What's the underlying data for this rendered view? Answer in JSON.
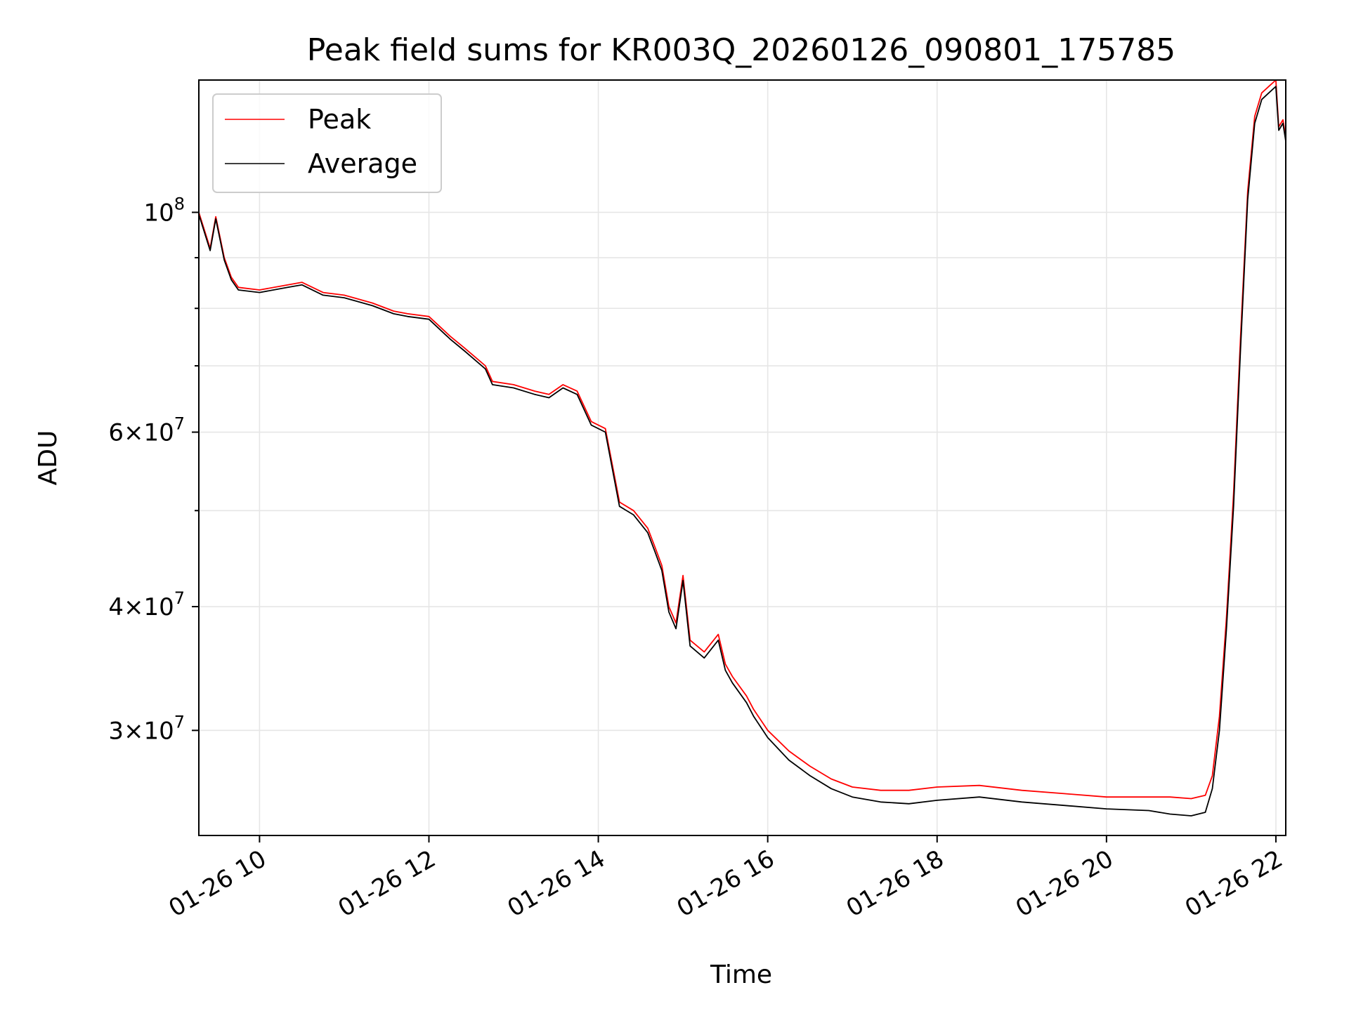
{
  "chart_data": {
    "type": "line",
    "title": "Peak field sums for KR003Q_20260126_090801_175785",
    "xlabel": "Time",
    "ylabel": "ADU",
    "y_scale": "log",
    "ylim": [
      23500000,
      136000000
    ],
    "xlim": [
      "01-26 09:17",
      "01-26 22:07"
    ],
    "x_ticks": [
      {
        "t": "01-26 10:00",
        "label": "01-26 10"
      },
      {
        "t": "01-26 12:00",
        "label": "01-26 12"
      },
      {
        "t": "01-26 14:00",
        "label": "01-26 14"
      },
      {
        "t": "01-26 16:00",
        "label": "01-26 16"
      },
      {
        "t": "01-26 18:00",
        "label": "01-26 18"
      },
      {
        "t": "01-26 20:00",
        "label": "01-26 20"
      },
      {
        "t": "01-26 22:00",
        "label": "01-26 22"
      }
    ],
    "y_ticks_major": [
      {
        "value": 30000000,
        "mantissa": "3",
        "exponent": "7"
      },
      {
        "value": 40000000,
        "mantissa": "4",
        "exponent": "7"
      },
      {
        "value": 60000000,
        "mantissa": "6",
        "exponent": "7"
      },
      {
        "value": 100000000,
        "mantissa": "",
        "exponent": "8"
      }
    ],
    "y_ticks_minor": [
      50000000,
      70000000,
      80000000,
      90000000
    ],
    "grid": true,
    "legend_position": "top-left",
    "series": [
      {
        "name": "Peak",
        "color": "#ff0000",
        "x": [
          "01-26 09:17",
          "01-26 09:25",
          "01-26 09:29",
          "01-26 09:35",
          "01-26 09:40",
          "01-26 09:45",
          "01-26 10:00",
          "01-26 10:20",
          "01-26 10:30",
          "01-26 10:45",
          "01-26 11:00",
          "01-26 11:20",
          "01-26 11:35",
          "01-26 11:45",
          "01-26 12:00",
          "01-26 12:15",
          "01-26 12:25",
          "01-26 12:40",
          "01-26 12:45",
          "01-26 13:00",
          "01-26 13:15",
          "01-26 13:25",
          "01-26 13:35",
          "01-26 13:45",
          "01-26 13:55",
          "01-26 14:05",
          "01-26 14:15",
          "01-26 14:25",
          "01-26 14:35",
          "01-26 14:40",
          "01-26 14:45",
          "01-26 14:50",
          "01-26 14:55",
          "01-26 15:00",
          "01-26 15:05",
          "01-26 15:15",
          "01-26 15:25",
          "01-26 15:30",
          "01-26 15:35",
          "01-26 15:45",
          "01-26 15:50",
          "01-26 16:00",
          "01-26 16:15",
          "01-26 16:30",
          "01-26 16:45",
          "01-26 17:00",
          "01-26 17:20",
          "01-26 17:40",
          "01-26 18:00",
          "01-26 18:30",
          "01-26 19:00",
          "01-26 19:30",
          "01-26 20:00",
          "01-26 20:30",
          "01-26 20:45",
          "01-26 21:00",
          "01-26 21:10",
          "01-26 21:15",
          "01-26 21:20",
          "01-26 21:25",
          "01-26 21:30",
          "01-26 21:35",
          "01-26 21:40",
          "01-26 21:45",
          "01-26 21:50",
          "01-26 21:55",
          "01-26 22:00",
          "01-26 22:02",
          "01-26 22:05",
          "01-26 22:07"
        ],
        "y": [
          100000000,
          92000000,
          99000000,
          90000000,
          86000000,
          84000000,
          83500000,
          84500000,
          85000000,
          83000000,
          82500000,
          81000000,
          79500000,
          79000000,
          78500000,
          75000000,
          73000000,
          70000000,
          67500000,
          67000000,
          66000000,
          65500000,
          67000000,
          66000000,
          61500000,
          60500000,
          51000000,
          50000000,
          48000000,
          46000000,
          44000000,
          40000000,
          38500000,
          43000000,
          37000000,
          36000000,
          37500000,
          35000000,
          34000000,
          32500000,
          31500000,
          30000000,
          28600000,
          27600000,
          26800000,
          26300000,
          26100000,
          26100000,
          26300000,
          26400000,
          26100000,
          25900000,
          25700000,
          25700000,
          25700000,
          25600000,
          25800000,
          27000000,
          31000000,
          39000000,
          52000000,
          75000000,
          105000000,
          125000000,
          132000000,
          134000000,
          136000000,
          122000000,
          124000000,
          119000000
        ]
      },
      {
        "name": "Average",
        "color": "#000000",
        "x": [
          "01-26 09:17",
          "01-26 09:25",
          "01-26 09:29",
          "01-26 09:35",
          "01-26 09:40",
          "01-26 09:45",
          "01-26 10:00",
          "01-26 10:20",
          "01-26 10:30",
          "01-26 10:45",
          "01-26 11:00",
          "01-26 11:20",
          "01-26 11:35",
          "01-26 11:45",
          "01-26 12:00",
          "01-26 12:15",
          "01-26 12:25",
          "01-26 12:40",
          "01-26 12:45",
          "01-26 13:00",
          "01-26 13:15",
          "01-26 13:25",
          "01-26 13:35",
          "01-26 13:45",
          "01-26 13:55",
          "01-26 14:05",
          "01-26 14:15",
          "01-26 14:25",
          "01-26 14:35",
          "01-26 14:40",
          "01-26 14:45",
          "01-26 14:50",
          "01-26 14:55",
          "01-26 15:00",
          "01-26 15:05",
          "01-26 15:15",
          "01-26 15:25",
          "01-26 15:30",
          "01-26 15:35",
          "01-26 15:45",
          "01-26 15:50",
          "01-26 16:00",
          "01-26 16:15",
          "01-26 16:30",
          "01-26 16:45",
          "01-26 17:00",
          "01-26 17:20",
          "01-26 17:40",
          "01-26 18:00",
          "01-26 18:30",
          "01-26 19:00",
          "01-26 19:30",
          "01-26 20:00",
          "01-26 20:30",
          "01-26 20:45",
          "01-26 21:00",
          "01-26 21:10",
          "01-26 21:15",
          "01-26 21:20",
          "01-26 21:25",
          "01-26 21:30",
          "01-26 21:35",
          "01-26 21:40",
          "01-26 21:45",
          "01-26 21:50",
          "01-26 21:55",
          "01-26 22:00",
          "01-26 22:02",
          "01-26 22:05",
          "01-26 22:07"
        ],
        "y": [
          99500000,
          91500000,
          98500000,
          89500000,
          85500000,
          83500000,
          83000000,
          84000000,
          84500000,
          82500000,
          82000000,
          80500000,
          79000000,
          78500000,
          78000000,
          74500000,
          72500000,
          69500000,
          67000000,
          66500000,
          65500000,
          65000000,
          66500000,
          65500000,
          61000000,
          60000000,
          50500000,
          49500000,
          47500000,
          45500000,
          43500000,
          39500000,
          38000000,
          42500000,
          36500000,
          35500000,
          37000000,
          34500000,
          33500000,
          32000000,
          31000000,
          29500000,
          28000000,
          27000000,
          26200000,
          25700000,
          25400000,
          25300000,
          25500000,
          25700000,
          25400000,
          25200000,
          25000000,
          24900000,
          24700000,
          24600000,
          24800000,
          26200000,
          30000000,
          38000000,
          50500000,
          73000000,
          103000000,
          123000000,
          130000000,
          132000000,
          134000000,
          121000000,
          123000000,
          118000000
        ]
      }
    ]
  }
}
